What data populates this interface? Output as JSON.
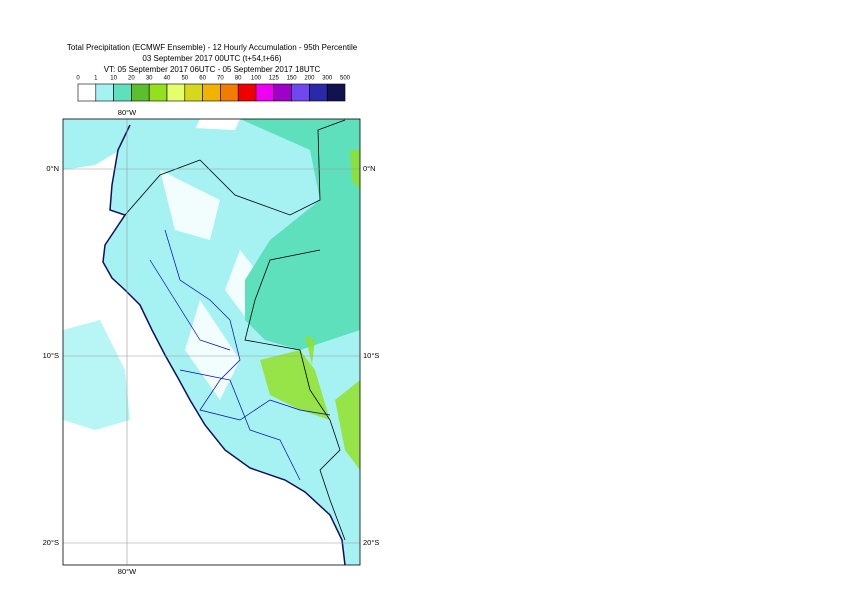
{
  "header": {
    "title": "Total Precipitation (ECMWF Ensemble) - 12 Hourly Accumulation - 95th Percentile",
    "base_time": "03 September 2017 00UTC (t+54,t+66)",
    "valid_time": "VT: 05 September 2017 06UTC - 05 September 2017 18UTC"
  },
  "legend": {
    "levels": [
      0,
      1,
      10,
      20,
      30,
      40,
      50,
      60,
      70,
      80,
      100,
      125,
      150,
      200,
      300,
      500
    ],
    "colors": [
      "#ffffff",
      "#a6f2f2",
      "#5fe0bc",
      "#5cbf2e",
      "#94e01e",
      "#e4ff6a",
      "#d6d81c",
      "#f0b400",
      "#f07c00",
      "#f00000",
      "#f000f0",
      "#a000c8",
      "#7048f0",
      "#2a2aa8",
      "#121250"
    ]
  },
  "map": {
    "lon_label": "80°W",
    "lat_labels": [
      "0°N",
      "10°S",
      "20°S"
    ]
  }
}
